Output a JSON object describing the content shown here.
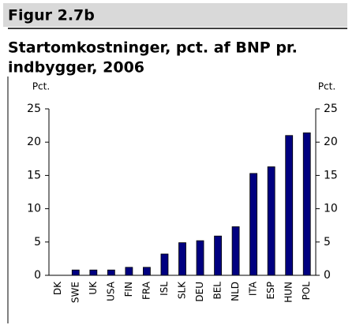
{
  "chart_data": {
    "type": "bar",
    "figure_label": "Figur 2.7b",
    "title_lines": [
      "Startomkostninger, pct. af BNP pr.",
      "indbygger, 2006"
    ],
    "ylabel": "Pct.",
    "y2label": "Pct.",
    "categories": [
      "DK",
      "SWE",
      "UK",
      "USA",
      "FIN",
      "FRA",
      "ISL",
      "SLK",
      "DEU",
      "BEL",
      "NLD",
      "ITA",
      "ESP",
      "HUN",
      "POL"
    ],
    "values": [
      0,
      0.8,
      0.8,
      0.8,
      1.2,
      1.2,
      3.2,
      4.9,
      5.2,
      5.9,
      7.3,
      15.3,
      16.3,
      21.0,
      21.4
    ],
    "color": "#000080",
    "ylim": [
      0,
      25
    ],
    "yticks": [
      0,
      5,
      10,
      15,
      20,
      25
    ],
    "y2lim": [
      0,
      25
    ],
    "y2ticks": [
      0,
      5,
      10,
      15,
      20,
      25
    ],
    "grid": false
  }
}
